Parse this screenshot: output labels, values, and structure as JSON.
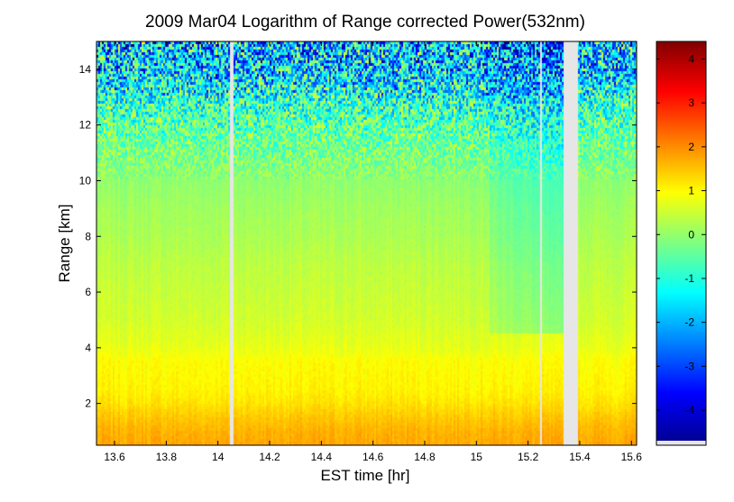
{
  "chart_data": {
    "type": "heatmap",
    "title": "2009 Mar04  Logarithm of Range corrected Power(532nm)",
    "xlabel": "EST time [hr]",
    "ylabel": "Range [km]",
    "xlim": [
      13.53,
      15.62
    ],
    "ylim": [
      0.5,
      15.0
    ],
    "xticks": [
      13.6,
      13.8,
      14,
      14.2,
      14.4,
      14.6,
      14.8,
      15,
      15.2,
      15.4,
      15.6
    ],
    "xtick_labels": [
      "13.6",
      "13.8",
      "14",
      "14.2",
      "14.4",
      "14.6",
      "14.8",
      "15",
      "15.2",
      "15.4",
      "15.6"
    ],
    "yticks": [
      2,
      4,
      6,
      8,
      10,
      12,
      14
    ],
    "ytick_labels": [
      "2",
      "4",
      "6",
      "8",
      "10",
      "12",
      "14"
    ],
    "colorbar": {
      "colormap": "jet",
      "clim": [
        -4.8,
        4.4
      ],
      "ticks": [
        -4,
        -3,
        -2,
        -1,
        0,
        1,
        2,
        3,
        4
      ],
      "tick_labels": [
        "-4",
        "-3",
        "-2",
        "-1",
        "0",
        "1",
        "2",
        "3",
        "4"
      ]
    },
    "profile": {
      "range_km": [
        0.5,
        1.0,
        1.5,
        2.0,
        2.5,
        3.0,
        3.5,
        4.0,
        5.0,
        6.0,
        7.0,
        8.0,
        9.0,
        10.0,
        11.0,
        12.0,
        13.0,
        14.0,
        15.0
      ],
      "log_power": [
        1.75,
        1.65,
        1.45,
        1.2,
        1.05,
        1.0,
        0.95,
        0.75,
        0.55,
        0.45,
        0.35,
        0.2,
        0.1,
        -0.05,
        -0.25,
        -0.55,
        -1.0,
        -1.6,
        -1.8
      ]
    },
    "data_gaps_hr": [
      [
        14.048,
        14.058
      ],
      [
        15.245,
        15.255
      ],
      [
        15.335,
        15.395
      ]
    ],
    "clear_region_hr": [
      15.05,
      15.34
    ],
    "grid": false
  }
}
